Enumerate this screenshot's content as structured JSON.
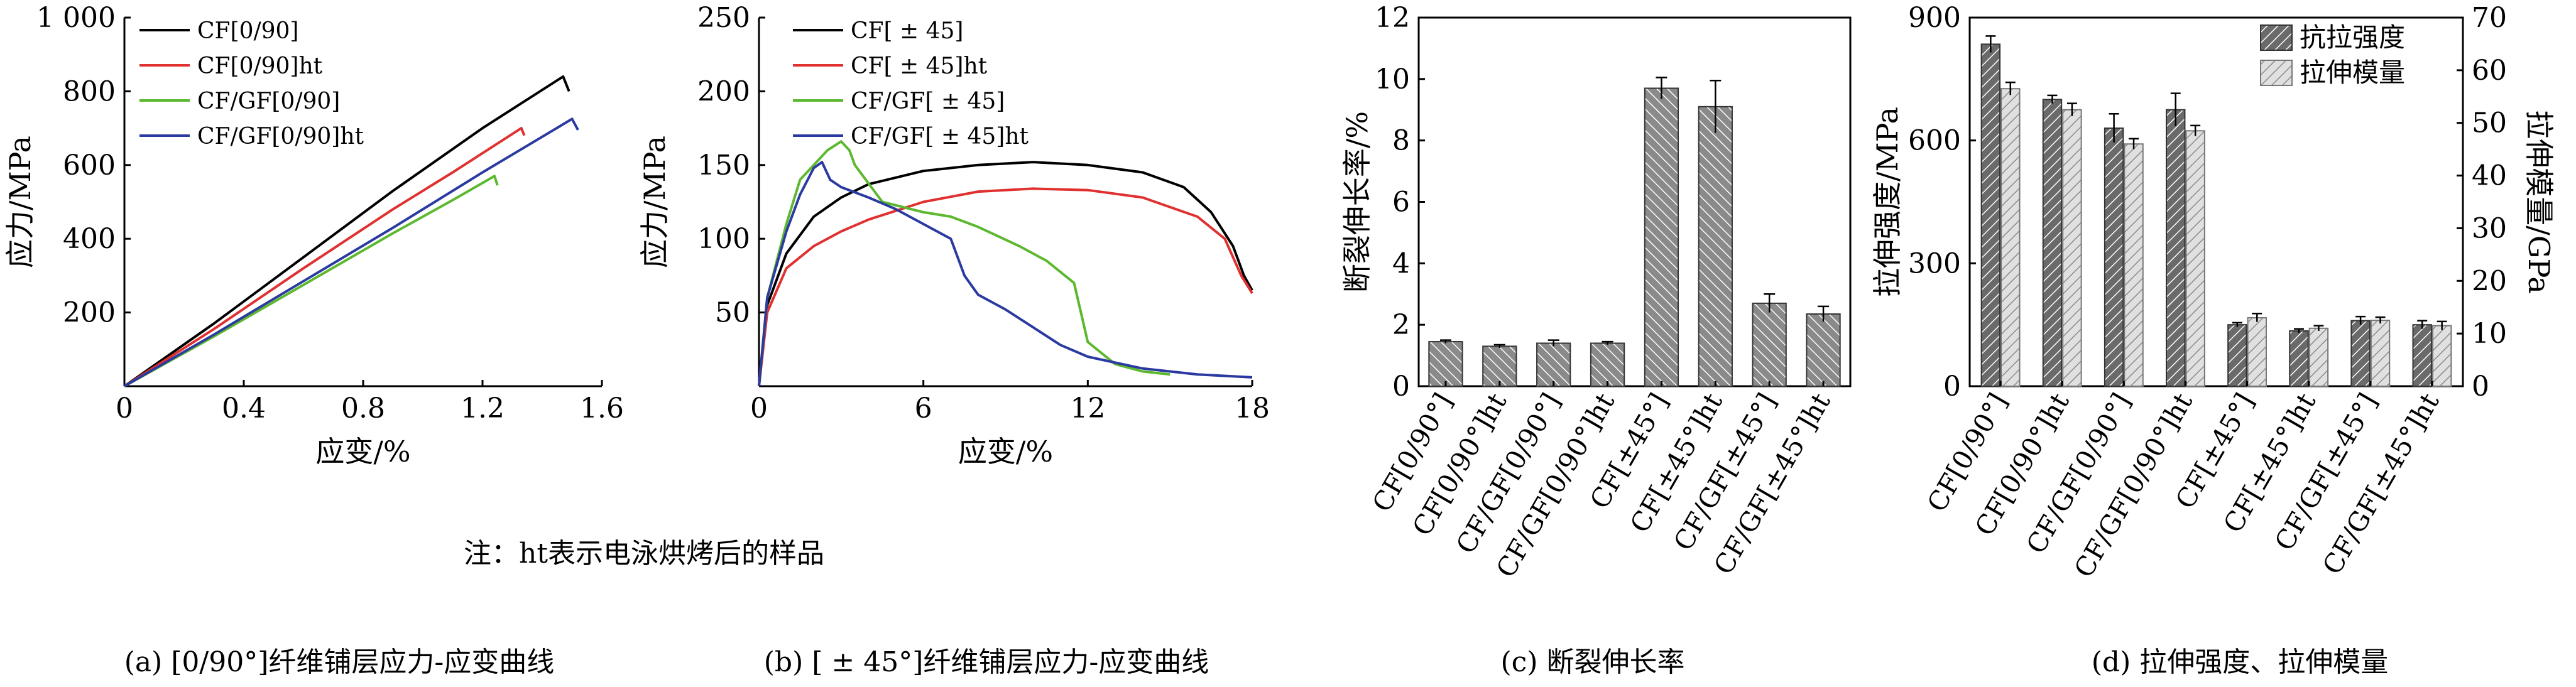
{
  "note": "注：ht表示电泳烘烤后的样品",
  "colors": {
    "black": "#000000",
    "red": "#e03030",
    "green": "#5cb82e",
    "blue": "#2b3aa0",
    "bar_dark": "#555555",
    "bar_light": "#bdbdbd"
  },
  "chart_data": [
    {
      "type": "line",
      "caption": "(a) [0/90°]纤维铺层应力-应变曲线",
      "xlabel": "应变/%",
      "ylabel": "应力/MPa",
      "xlim": [
        0,
        1.6
      ],
      "ylim": [
        0,
        1000
      ],
      "xticks": [
        0,
        0.4,
        0.8,
        1.2,
        1.6
      ],
      "yticks": [
        200,
        400,
        600,
        800,
        1000
      ],
      "ytick_labels": [
        "200",
        "400",
        "600",
        "800",
        "1 000"
      ],
      "legend_position": "top-left",
      "series": [
        {
          "name": "CF[0/90]",
          "color": "#000000",
          "points": [
            [
              0,
              0
            ],
            [
              0.3,
              170
            ],
            [
              0.6,
              350
            ],
            [
              0.9,
              530
            ],
            [
              1.2,
              700
            ],
            [
              1.47,
              840
            ],
            [
              1.49,
              800
            ]
          ]
        },
        {
          "name": "CF[0/90]ht",
          "color": "#e03030",
          "points": [
            [
              0,
              0
            ],
            [
              0.3,
              155
            ],
            [
              0.6,
              320
            ],
            [
              0.9,
              480
            ],
            [
              1.1,
              580
            ],
            [
              1.33,
              700
            ],
            [
              1.34,
              680
            ]
          ]
        },
        {
          "name": "CF/GF[0/90]",
          "color": "#5cb82e",
          "points": [
            [
              0,
              0
            ],
            [
              0.3,
              135
            ],
            [
              0.6,
              275
            ],
            [
              0.9,
              415
            ],
            [
              1.1,
              505
            ],
            [
              1.24,
              570
            ],
            [
              1.25,
              545
            ]
          ]
        },
        {
          "name": "CF/GF[0/90]ht",
          "color": "#2b3aa0",
          "points": [
            [
              0,
              0
            ],
            [
              0.3,
              140
            ],
            [
              0.6,
              285
            ],
            [
              0.9,
              430
            ],
            [
              1.2,
              580
            ],
            [
              1.5,
              725
            ],
            [
              1.52,
              695
            ]
          ]
        }
      ]
    },
    {
      "type": "line",
      "caption": "(b) [ ± 45°]纤维铺层应力-应变曲线",
      "xlabel": "应变/%",
      "ylabel": "应力/MPa",
      "xlim": [
        0,
        18
      ],
      "ylim": [
        0,
        250
      ],
      "xticks": [
        0,
        6,
        12,
        18
      ],
      "yticks": [
        50,
        100,
        150,
        200,
        250
      ],
      "legend_position": "top-right",
      "series": [
        {
          "name": "CF[ ± 45]",
          "color": "#000000",
          "points": [
            [
              0,
              0
            ],
            [
              0.3,
              55
            ],
            [
              1,
              90
            ],
            [
              2,
              115
            ],
            [
              3,
              128
            ],
            [
              4,
              137
            ],
            [
              6,
              146
            ],
            [
              8,
              150
            ],
            [
              10,
              152
            ],
            [
              12,
              150
            ],
            [
              14,
              145
            ],
            [
              15.5,
              135
            ],
            [
              16.5,
              118
            ],
            [
              17.3,
              95
            ],
            [
              17.7,
              75
            ],
            [
              18,
              65
            ]
          ]
        },
        {
          "name": "CF[ ± 45]ht",
          "color": "#e03030",
          "points": [
            [
              0,
              0
            ],
            [
              0.3,
              50
            ],
            [
              1,
              80
            ],
            [
              2,
              95
            ],
            [
              3,
              105
            ],
            [
              4,
              113
            ],
            [
              6,
              125
            ],
            [
              8,
              132
            ],
            [
              10,
              134
            ],
            [
              12,
              133
            ],
            [
              14,
              128
            ],
            [
              16,
              115
            ],
            [
              17,
              100
            ],
            [
              17.6,
              75
            ],
            [
              18,
              63
            ]
          ]
        },
        {
          "name": "CF/GF[ ± 45]",
          "color": "#5cb82e",
          "points": [
            [
              0,
              0
            ],
            [
              0.3,
              60
            ],
            [
              1,
              110
            ],
            [
              1.5,
              140
            ],
            [
              2,
              150
            ],
            [
              2.5,
              160
            ],
            [
              3,
              166
            ],
            [
              3.3,
              160
            ],
            [
              3.5,
              150
            ],
            [
              4.5,
              125
            ],
            [
              6,
              118
            ],
            [
              7,
              115
            ],
            [
              8,
              108
            ],
            [
              9.5,
              95
            ],
            [
              10.5,
              85
            ],
            [
              11.5,
              70
            ],
            [
              12,
              30
            ],
            [
              13,
              15
            ],
            [
              14,
              10
            ],
            [
              15,
              8
            ]
          ]
        },
        {
          "name": "CF/GF[ ± 45]ht",
          "color": "#2b3aa0",
          "points": [
            [
              0,
              0
            ],
            [
              0.3,
              60
            ],
            [
              1,
              105
            ],
            [
              1.5,
              130
            ],
            [
              2,
              148
            ],
            [
              2.3,
              152
            ],
            [
              2.6,
              140
            ],
            [
              3,
              135
            ],
            [
              4,
              128
            ],
            [
              5,
              120
            ],
            [
              6,
              110
            ],
            [
              7,
              100
            ],
            [
              7.5,
              75
            ],
            [
              8,
              62
            ],
            [
              9,
              52
            ],
            [
              10,
              40
            ],
            [
              11,
              28
            ],
            [
              12,
              20
            ],
            [
              14,
              12
            ],
            [
              16,
              8
            ],
            [
              18,
              6
            ]
          ]
        }
      ]
    },
    {
      "type": "bar",
      "caption": "(c) 断裂伸长率",
      "ylabel": "断裂伸长率/%",
      "ylim": [
        0,
        12
      ],
      "yticks": [
        0,
        2,
        4,
        6,
        8,
        10,
        12
      ],
      "categories": [
        "CF[0/90°]",
        "CF[0/90°]ht",
        "CF/GF[0/90°]",
        "CF/GF[0/90°]ht",
        "CF[±45°]",
        "CF[±45°]ht",
        "CF/GF[±45°]",
        "CF/GF[±45°]ht"
      ],
      "series": [
        {
          "values": [
            1.45,
            1.3,
            1.4,
            1.4,
            9.7,
            9.1,
            2.7,
            2.35
          ],
          "errors": [
            0.05,
            0.05,
            0.1,
            0.05,
            0.35,
            0.85,
            0.3,
            0.25
          ]
        }
      ]
    },
    {
      "type": "bar",
      "caption": "(d) 拉伸强度、拉伸模量",
      "ylabel": "拉伸强度/MPa",
      "y2label": "拉伸模量/GPa",
      "ylim": [
        0,
        900
      ],
      "yticks": [
        0,
        300,
        600,
        900
      ],
      "y2lim": [
        0,
        70
      ],
      "y2ticks": [
        0,
        10,
        20,
        30,
        40,
        50,
        60,
        70
      ],
      "legend_position": "top-right",
      "categories": [
        "CF[0/90°]",
        "CF[0/90°]ht",
        "CF/GF[0/90°]",
        "CF/GF[0/90°]ht",
        "CF[±45°]",
        "CF[±45°]ht",
        "CF/GF[±45°]",
        "CF/GF[±45°]ht"
      ],
      "series": [
        {
          "name": "抗拉强度",
          "axis": "left",
          "values": [
            835,
            700,
            630,
            675,
            150,
            135,
            160,
            150
          ],
          "errors": [
            20,
            10,
            35,
            40,
            5,
            5,
            10,
            10
          ]
        },
        {
          "name": "拉伸模量",
          "axis": "right",
          "values": [
            56.5,
            52.5,
            46,
            48.5,
            13,
            11,
            12.5,
            11.5
          ],
          "errors": [
            1.2,
            1.2,
            1.0,
            1.0,
            0.8,
            0.5,
            0.6,
            0.8
          ]
        }
      ]
    }
  ]
}
